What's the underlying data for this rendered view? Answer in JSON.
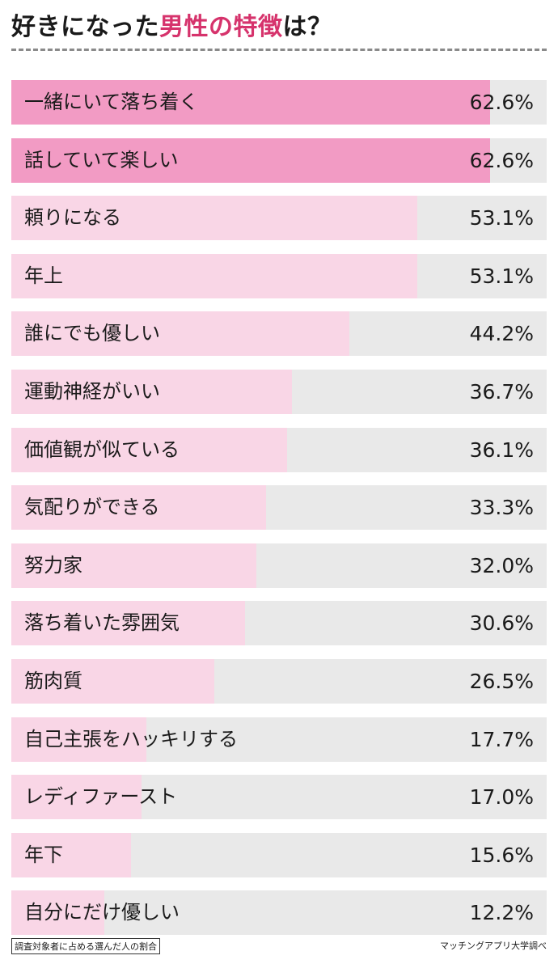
{
  "header": {
    "title_part1": "好きになった",
    "title_part2": "男性の特徴",
    "title_part3": "は？"
  },
  "footer": {
    "note": "調査対象者に占める選んだ人の割合",
    "source": "マッチングアプリ大学調べ"
  },
  "colors": {
    "top": "#f29bc4",
    "other": "#f9d6e6",
    "track": "#e9e9e9"
  },
  "chart_data": {
    "type": "bar",
    "orientation": "horizontal",
    "unit": "%",
    "xlim": [
      0,
      70
    ],
    "categories": [
      "一緒にいて落ち着く",
      "話していて楽しい",
      "頼りになる",
      "年上",
      "誰にでも優しい",
      "運動神経がいい",
      "価値観が似ている",
      "気配りができる",
      "努力家",
      "落ち着いた雰囲気",
      "筋肉質",
      "自己主張をハッキリする",
      "レディファースト",
      "年下",
      "自分にだけ優しい"
    ],
    "values": [
      62.6,
      62.6,
      53.1,
      53.1,
      44.2,
      36.7,
      36.1,
      33.3,
      32.0,
      30.6,
      26.5,
      17.7,
      17.0,
      15.6,
      12.2
    ],
    "value_labels": [
      "62.6%",
      "62.6%",
      "53.1%",
      "53.1%",
      "44.2%",
      "36.7%",
      "36.1%",
      "33.3%",
      "32.0%",
      "30.6%",
      "26.5%",
      "17.7%",
      "17.0%",
      "15.6%",
      "12.2%"
    ]
  }
}
